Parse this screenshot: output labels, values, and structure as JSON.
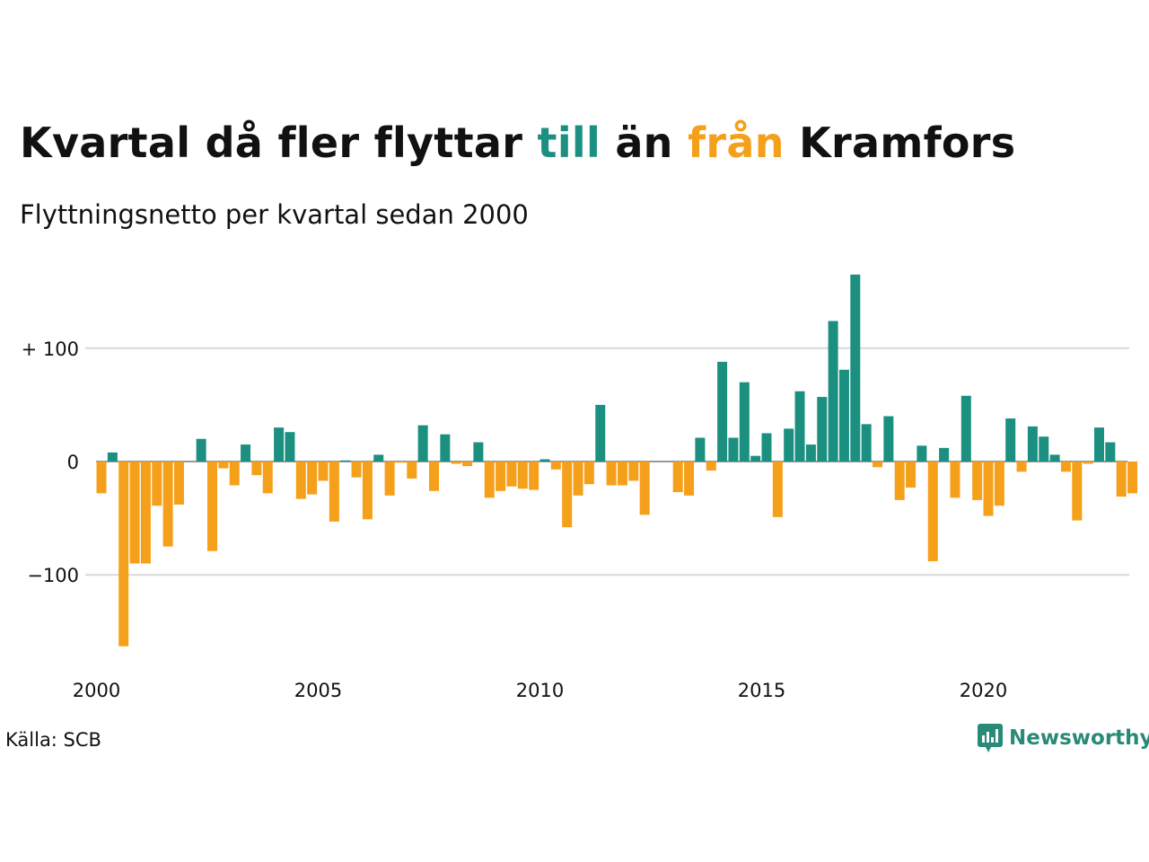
{
  "colors": {
    "positive": "#1b9081",
    "negative": "#f5a01a",
    "grid": "#d9d9d9",
    "logo": "#2a8a78"
  },
  "title": {
    "part1": "Kvartal då fler flyttar ",
    "till": "till",
    "part2": " än ",
    "fran": "från",
    "part3": " Kramfors"
  },
  "subtitle": "Flyttningsnetto per kvartal sedan 2000",
  "source": "Källa: SCB",
  "logo": {
    "text": "Newsworthy",
    "icon": "newsworthy-logo-icon"
  },
  "chart_data": {
    "type": "bar",
    "title": "Kvartal då fler flyttar till än från Kramfors",
    "subtitle": "Flyttningsnetto per kvartal sedan 2000",
    "x_tick_labels": [
      "2000",
      "2005",
      "2010",
      "2015",
      "2020"
    ],
    "y_tick_labels": [
      "+ 100",
      "0",
      "−100"
    ],
    "y_ticks": [
      100,
      0,
      -100
    ],
    "ylim": [
      -180,
      180
    ],
    "grid": true,
    "x_start": "2000 Q1",
    "values": [
      -28,
      8,
      -163,
      -90,
      -90,
      -39,
      -75,
      -38,
      0,
      20,
      -79,
      -6,
      -21,
      15,
      -12,
      -28,
      30,
      26,
      -33,
      -29,
      -17,
      -53,
      1,
      -14,
      -51,
      6,
      -30,
      -1,
      -15,
      32,
      -26,
      24,
      -2,
      -4,
      17,
      -32,
      -26,
      -22,
      -24,
      -25,
      2,
      -7,
      -58,
      -30,
      -20,
      50,
      -21,
      -21,
      -17,
      -47,
      0,
      0,
      -27,
      -30,
      21,
      -8,
      88,
      21,
      70,
      5,
      25,
      -49,
      29,
      62,
      15,
      57,
      124,
      81,
      165,
      33,
      -5,
      40,
      -34,
      -23,
      14,
      -88,
      12,
      -32,
      58,
      -34,
      -48,
      -39,
      38,
      -9,
      31,
      22,
      6,
      -9,
      -52,
      -2,
      30,
      17,
      -31,
      -28
    ]
  }
}
